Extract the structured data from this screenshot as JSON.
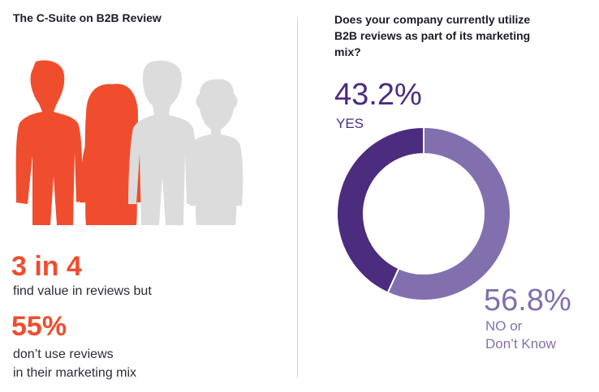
{
  "left": {
    "title": "The C-Suite on B2B Review",
    "stat1_value": "3 in 4",
    "stat1_text": "find value in reviews but",
    "stat2_value": "55%",
    "stat2_text_line1": "don’t use reviews",
    "stat2_text_line2": "in their marketing mix",
    "people_filled": 2,
    "people_total": 4,
    "colors": {
      "accent": "#f04d2e",
      "inactive": "#dcdcdc"
    }
  },
  "right": {
    "question": "Does your company currently utilize B2B reviews as part of its marketing mix?"
  },
  "chart_data": {
    "type": "pie",
    "variant": "donut",
    "title": "Does your company currently utilize B2B reviews as part of its marketing mix?",
    "slices": [
      {
        "label": "YES",
        "value": 43.2,
        "display": "43.2%",
        "color": "#4b2c7f",
        "label_color": "#4b2c7f"
      },
      {
        "label": "NO or Don’t Know",
        "label_line1": "NO or",
        "label_line2": "Don’t Know",
        "value": 56.8,
        "display": "56.8%",
        "color": "#8270ae",
        "label_color": "#8270ae"
      }
    ]
  }
}
